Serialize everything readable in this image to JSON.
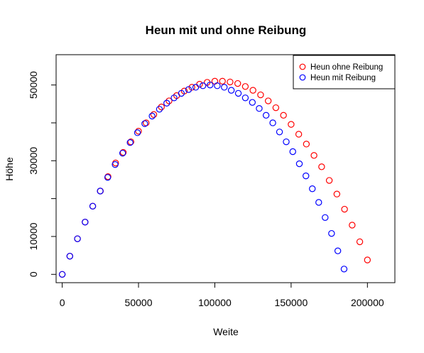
{
  "chart_data": {
    "type": "scatter",
    "title": "Heun mit und ohne Reibung",
    "xlabel": "Weite",
    "ylabel": "Höhe",
    "xlim": [
      -4000,
      218000
    ],
    "ylim": [
      -2200,
      58000
    ],
    "xticks": [
      0,
      50000,
      100000,
      150000,
      200000
    ],
    "yticks": [
      0,
      10000,
      30000,
      50000
    ],
    "grid": false,
    "legend_position": "top-right",
    "series": [
      {
        "name": "Heun ohne Reibung",
        "color": "#ff0000",
        "marker": "open-circle",
        "points": [
          [
            0,
            0
          ],
          [
            5000,
            4800
          ],
          [
            10000,
            9400
          ],
          [
            15000,
            13800
          ],
          [
            20000,
            18000
          ],
          [
            25000,
            22000
          ],
          [
            30000,
            25800
          ],
          [
            35000,
            29400
          ],
          [
            40000,
            32200
          ],
          [
            45000,
            35000
          ],
          [
            50000,
            37800
          ],
          [
            55000,
            40000
          ],
          [
            60000,
            42200
          ],
          [
            65000,
            44200
          ],
          [
            70000,
            45800
          ],
          [
            75000,
            47200
          ],
          [
            80000,
            48400
          ],
          [
            85000,
            49400
          ],
          [
            90000,
            50200
          ],
          [
            95000,
            50700
          ],
          [
            100000,
            51000
          ],
          [
            105000,
            51000
          ],
          [
            110000,
            50800
          ],
          [
            115000,
            50400
          ],
          [
            120000,
            49600
          ],
          [
            125000,
            48600
          ],
          [
            130000,
            47400
          ],
          [
            135000,
            45800
          ],
          [
            140000,
            44000
          ],
          [
            145000,
            42000
          ],
          [
            150000,
            39600
          ],
          [
            155000,
            37000
          ],
          [
            160000,
            34400
          ],
          [
            165000,
            31400
          ],
          [
            170000,
            28400
          ],
          [
            175000,
            24800
          ],
          [
            180000,
            21200
          ],
          [
            185000,
            17200
          ],
          [
            190000,
            13000
          ],
          [
            195000,
            8600
          ],
          [
            200000,
            3800
          ]
        ]
      },
      {
        "name": "Heun mit Reibung",
        "color": "#0000ff",
        "marker": "open-circle",
        "points": [
          [
            0,
            0
          ],
          [
            5000,
            4800
          ],
          [
            10000,
            9400
          ],
          [
            15000,
            13800
          ],
          [
            20000,
            18000
          ],
          [
            24900,
            22000
          ],
          [
            29800,
            25600
          ],
          [
            34700,
            29000
          ],
          [
            39600,
            32000
          ],
          [
            44500,
            34800
          ],
          [
            49300,
            37400
          ],
          [
            54100,
            39800
          ],
          [
            58900,
            41800
          ],
          [
            63700,
            43600
          ],
          [
            68500,
            45200
          ],
          [
            73300,
            46600
          ],
          [
            78100,
            47800
          ],
          [
            82800,
            48800
          ],
          [
            87500,
            49400
          ],
          [
            92200,
            49800
          ],
          [
            96900,
            50000
          ],
          [
            101600,
            49800
          ],
          [
            106200,
            49400
          ],
          [
            110800,
            48600
          ],
          [
            115400,
            47800
          ],
          [
            120000,
            46600
          ],
          [
            124600,
            45400
          ],
          [
            129100,
            43800
          ],
          [
            133600,
            42000
          ],
          [
            138000,
            40000
          ],
          [
            142400,
            37600
          ],
          [
            146800,
            35000
          ],
          [
            151100,
            32400
          ],
          [
            155400,
            29200
          ],
          [
            159700,
            26000
          ],
          [
            163900,
            22600
          ],
          [
            168100,
            19000
          ],
          [
            172300,
            15000
          ],
          [
            176500,
            10800
          ],
          [
            180600,
            6200
          ],
          [
            184700,
            1400
          ]
        ]
      }
    ]
  }
}
